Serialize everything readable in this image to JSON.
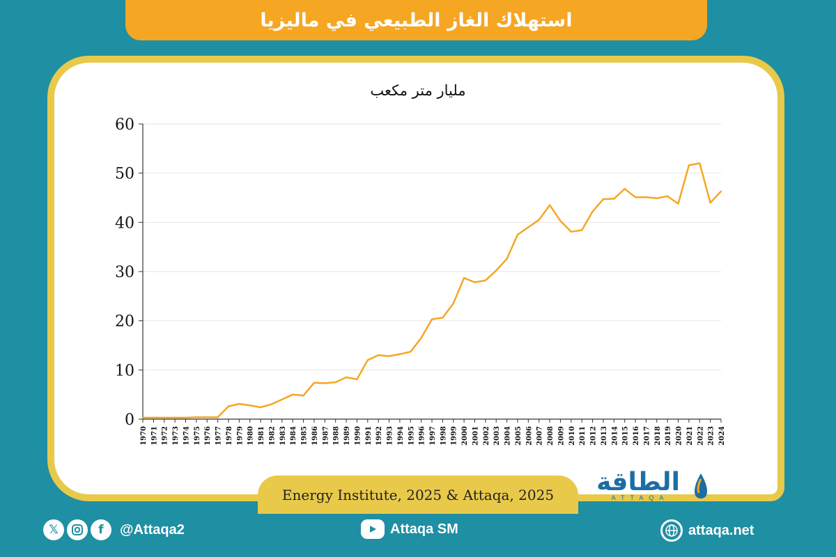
{
  "header": {
    "title": "استهلاك الغاز الطبيعي في ماليزيا"
  },
  "chart_unit_label": "مليار متر مكعب",
  "source": "Energy Institute, 2025 & Attaqa, 2025",
  "logo": {
    "arabic": "الطاقة",
    "latin": "ATTAQA"
  },
  "footer": {
    "handle": "@Attaqa2",
    "youtube": "Attaqa SM",
    "website": "attaqa.net",
    "icons": [
      "x-icon",
      "instagram-icon",
      "facebook-icon",
      "youtube-icon",
      "globe-icon"
    ]
  },
  "colors": {
    "background": "#1f8fa3",
    "banner": "#f5a623",
    "card_border": "#e8c94a",
    "line": "#f5a623"
  },
  "chart_data": {
    "type": "line",
    "title": "",
    "ylabel": "مليار متر مكعب",
    "xlabel": "",
    "ylim": [
      0,
      60
    ],
    "yticks": [
      0,
      10,
      20,
      30,
      40,
      50,
      60
    ],
    "grid": true,
    "legend": "none",
    "x": [
      "1970",
      "1971",
      "1972",
      "1973",
      "1974",
      "1975",
      "1976",
      "1977",
      "1978",
      "1979",
      "1980",
      "1981",
      "1982",
      "1983",
      "1984",
      "1985",
      "1986",
      "1987",
      "1988",
      "1989",
      "1990",
      "1991",
      "1992",
      "1993",
      "1994",
      "1995",
      "1996",
      "1997",
      "1998",
      "1999",
      "2000",
      "2001",
      "2002",
      "2003",
      "2004",
      "2005",
      "2006",
      "2007",
      "2008",
      "2009",
      "2010",
      "2011",
      "2012",
      "2013",
      "2014",
      "2015",
      "2016",
      "2017",
      "2018",
      "2019",
      "2020",
      "2021",
      "2022",
      "2023",
      "2024"
    ],
    "values": [
      0.3,
      0.3,
      0.3,
      0.3,
      0.3,
      0.4,
      0.4,
      0.4,
      2.6,
      3.1,
      2.8,
      2.4,
      3.0,
      4.0,
      5.0,
      4.8,
      7.4,
      7.3,
      7.5,
      8.5,
      8.1,
      12.0,
      13.0,
      12.8,
      13.2,
      13.7,
      16.5,
      20.3,
      20.6,
      23.5,
      28.7,
      27.8,
      28.2,
      30.2,
      32.6,
      37.5,
      39.0,
      40.5,
      43.5,
      40.3,
      38.1,
      38.4,
      42.2,
      44.7,
      44.8,
      46.8,
      45.1,
      45.1,
      44.9,
      45.3,
      43.8,
      51.6,
      52.0,
      44.0,
      46.3
    ]
  }
}
